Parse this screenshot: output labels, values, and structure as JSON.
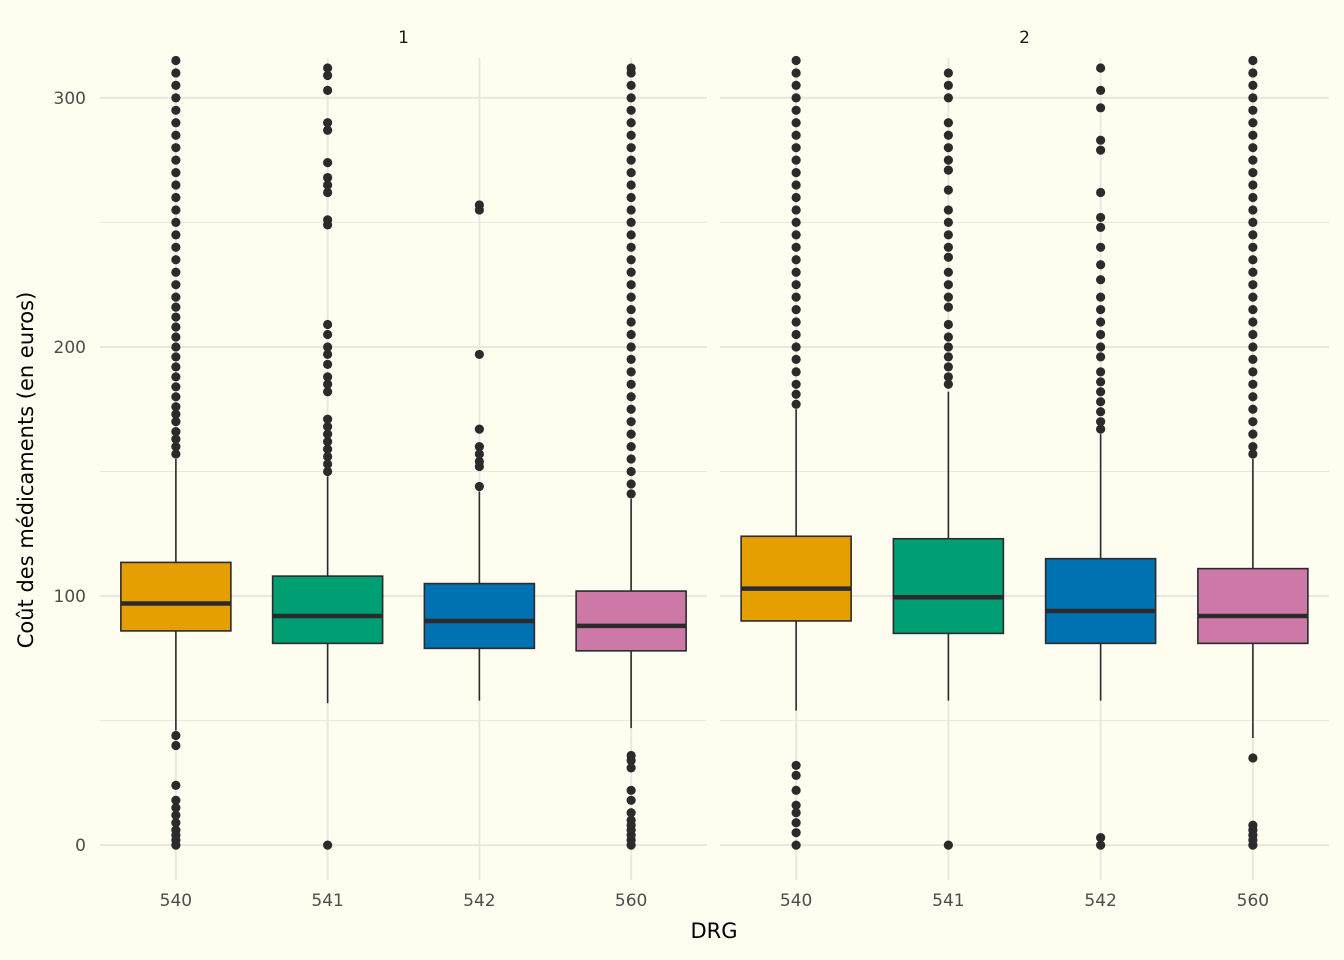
{
  "chart_data": {
    "type": "boxplot",
    "xlabel": "DRG",
    "ylabel": "Coût des médicaments (en euros)",
    "ylim": [
      -14,
      316
    ],
    "yticks": [
      0,
      100,
      200,
      300
    ],
    "grid": true,
    "categories": [
      "540",
      "541",
      "542",
      "560"
    ],
    "colors": {
      "540": "#e69f00",
      "541": "#009e73",
      "542": "#0072b2",
      "560": "#cc79a7",
      "line": "#2b2b2b",
      "grid": "#e8e8e0",
      "background": "#fffdf0"
    },
    "panels": [
      {
        "label": "1",
        "boxes": [
          {
            "category": "540",
            "q1": 86,
            "median": 97,
            "q3": 113.5,
            "whisker_low": 46,
            "whisker_high": 155,
            "outliers_high": [
              157,
              160,
              163,
              166,
              170,
              173,
              176,
              180,
              184,
              188,
              192,
              196,
              200,
              204,
              208,
              212,
              216,
              220,
              225,
              230,
              235,
              240,
              245,
              250,
              255,
              260,
              265,
              270,
              275,
              280,
              285,
              290,
              295,
              300,
              305,
              310,
              315
            ],
            "outliers_low": [
              0,
              2,
              4,
              6,
              9,
              12,
              15,
              18,
              24,
              40,
              44
            ]
          },
          {
            "category": "541",
            "q1": 81,
            "median": 92,
            "q3": 108,
            "whisker_low": 57,
            "whisker_high": 148,
            "outliers_high": [
              150,
              153,
              156,
              159,
              162,
              165,
              168,
              171,
              182,
              185,
              188,
              193,
              197,
              200,
              205,
              209,
              249,
              251,
              262,
              265,
              268,
              274,
              287,
              290,
              303,
              309,
              312
            ],
            "outliers_low": [
              0
            ]
          },
          {
            "category": "542",
            "q1": 79,
            "median": 90,
            "q3": 105,
            "whisker_low": 58,
            "whisker_high": 142,
            "outliers_high": [
              144,
              152,
              154,
              157,
              160,
              167,
              197,
              255,
              257
            ],
            "outliers_low": []
          },
          {
            "category": "560",
            "q1": 78,
            "median": 88,
            "q3": 102,
            "whisker_low": 47,
            "whisker_high": 139,
            "outliers_high": [
              141,
              145,
              150,
              155,
              160,
              165,
              170,
              175,
              180,
              185,
              190,
              195,
              200,
              205,
              210,
              215,
              220,
              225,
              230,
              235,
              240,
              245,
              250,
              255,
              260,
              265,
              270,
              275,
              280,
              285,
              290,
              295,
              300,
              305,
              310,
              312
            ],
            "outliers_low": [
              0,
              2,
              4,
              6,
              8,
              10,
              13,
              18,
              22,
              31,
              34,
              36
            ]
          }
        ]
      },
      {
        "label": "2",
        "boxes": [
          {
            "category": "540",
            "q1": 90,
            "median": 103,
            "q3": 124,
            "whisker_low": 54,
            "whisker_high": 175,
            "outliers_high": [
              177,
              181,
              185,
              190,
              195,
              200,
              205,
              210,
              215,
              220,
              225,
              230,
              235,
              240,
              245,
              250,
              255,
              260,
              265,
              270,
              275,
              280,
              285,
              290,
              295,
              300,
              305,
              310,
              315
            ],
            "outliers_low": [
              0,
              5,
              9,
              13,
              16,
              22,
              28,
              32
            ]
          },
          {
            "category": "541",
            "q1": 85,
            "median": 99.5,
            "q3": 123,
            "whisker_low": 58,
            "whisker_high": 182,
            "outliers_high": [
              185,
              188,
              192,
              196,
              200,
              204,
              209,
              216,
              220,
              225,
              230,
              236,
              240,
              245,
              250,
              255,
              263,
              271,
              275,
              280,
              285,
              290,
              300,
              305,
              310
            ],
            "outliers_low": [
              0
            ]
          },
          {
            "category": "542",
            "q1": 81,
            "median": 94,
            "q3": 115,
            "whisker_low": 58,
            "whisker_high": 165,
            "outliers_high": [
              167,
              170,
              174,
              178,
              182,
              186,
              190,
              196,
              200,
              205,
              210,
              215,
              220,
              227,
              233,
              240,
              248,
              252,
              262,
              279,
              283,
              296,
              303,
              312
            ],
            "outliers_low": [
              0,
              3
            ]
          },
          {
            "category": "560",
            "q1": 81,
            "median": 92,
            "q3": 111,
            "whisker_low": 43,
            "whisker_high": 155,
            "outliers_high": [
              157,
              160,
              165,
              170,
              175,
              180,
              185,
              190,
              195,
              200,
              205,
              210,
              215,
              220,
              225,
              230,
              235,
              240,
              245,
              250,
              255,
              260,
              265,
              270,
              275,
              280,
              285,
              290,
              295,
              300,
              305,
              310,
              315
            ],
            "outliers_low": [
              0,
              2,
              4,
              6,
              8,
              35
            ]
          }
        ]
      }
    ]
  }
}
